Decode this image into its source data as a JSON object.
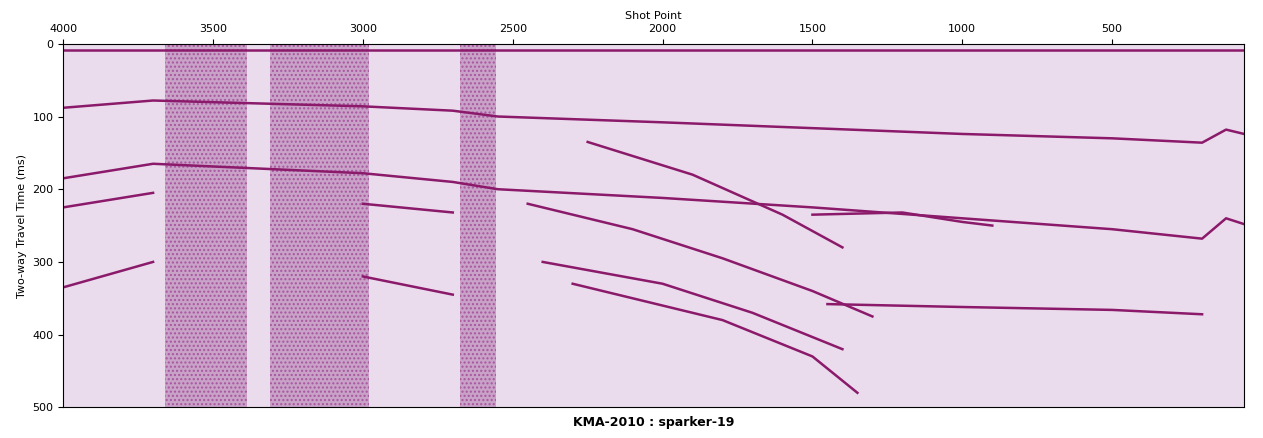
{
  "chart_data": {
    "type": "seismic",
    "title": "KMA-2010 : sparker-19",
    "x_label": "Shot Point",
    "y_label": "Two-way Travel Time (ms)",
    "xlim": [
      4000,
      60
    ],
    "xticks": [
      4000,
      3500,
      3000,
      2500,
      2000,
      1500,
      1000,
      500
    ],
    "ylim": [
      500,
      0
    ],
    "yticks": [
      0,
      100,
      200,
      300,
      400,
      500
    ],
    "color": "#8b1a6b",
    "noise_zones": [
      [
        3660,
        3385
      ],
      [
        3310,
        2980
      ],
      [
        2675,
        2555
      ]
    ],
    "reflectors": [
      {
        "x": [
          4000,
          60
        ],
        "y": [
          8,
          8
        ]
      },
      {
        "x": [
          4000,
          3700,
          3000,
          2700,
          2550,
          2000,
          1500,
          1000,
          500,
          200,
          120,
          60
        ],
        "y": [
          88,
          78,
          86,
          92,
          100,
          108,
          116,
          124,
          130,
          136,
          118,
          124
        ]
      },
      {
        "x": [
          4000,
          3700,
          3000,
          2700,
          2550,
          2000,
          1500,
          1000,
          500,
          200,
          120,
          60
        ],
        "y": [
          185,
          165,
          178,
          190,
          200,
          212,
          225,
          240,
          255,
          268,
          240,
          248
        ]
      },
      {
        "x": [
          4000,
          3700
        ],
        "y": [
          225,
          205
        ]
      },
      {
        "x": [
          4000,
          3700
        ],
        "y": [
          335,
          300
        ]
      },
      {
        "x": [
          3000,
          2700
        ],
        "y": [
          220,
          232
        ]
      },
      {
        "x": [
          3000,
          2700
        ],
        "y": [
          320,
          345
        ]
      },
      {
        "x": [
          2250,
          1900,
          1600,
          1400
        ],
        "y": [
          135,
          180,
          235,
          280
        ]
      },
      {
        "x": [
          2450,
          2100,
          1800,
          1500,
          1300
        ],
        "y": [
          220,
          255,
          295,
          340,
          375
        ]
      },
      {
        "x": [
          2400,
          2000,
          1700,
          1400
        ],
        "y": [
          300,
          330,
          370,
          420
        ]
      },
      {
        "x": [
          2300,
          1800,
          1500,
          1350
        ],
        "y": [
          330,
          380,
          430,
          480
        ]
      },
      {
        "x": [
          1500,
          1200,
          1000,
          900
        ],
        "y": [
          235,
          232,
          245,
          250
        ]
      },
      {
        "x": [
          1450,
          1000,
          500,
          200
        ],
        "y": [
          358,
          362,
          366,
          372
        ]
      }
    ]
  }
}
